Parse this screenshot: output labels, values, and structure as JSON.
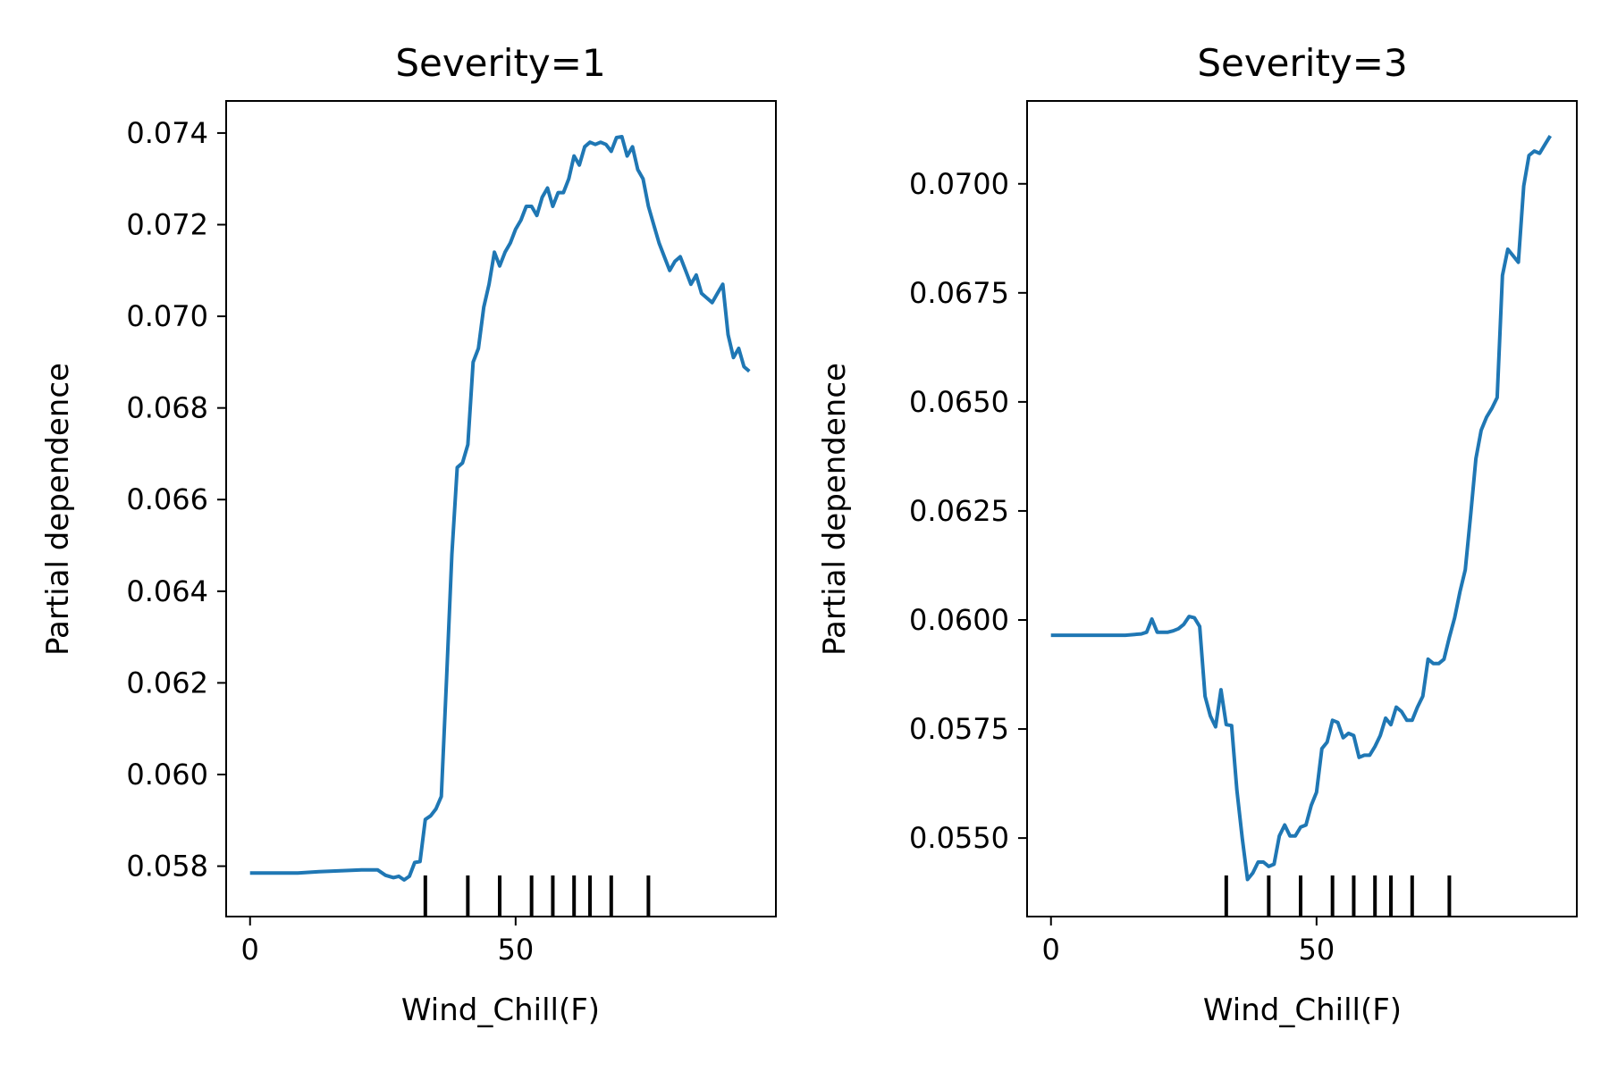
{
  "chart_data": [
    {
      "type": "line",
      "title": "Severity=1",
      "xlabel": "Wind_Chill(F)",
      "ylabel": "Partial dependence",
      "xlim": [
        -4.5,
        99
      ],
      "ylim": [
        0.0569,
        0.0747
      ],
      "xticks": [
        0,
        50
      ],
      "xtick_labels": [
        "0",
        "50"
      ],
      "yticks": [
        0.058,
        0.06,
        0.062,
        0.064,
        0.066,
        0.068,
        0.07,
        0.072,
        0.074
      ],
      "ytick_labels": [
        "0.058",
        "0.060",
        "0.062",
        "0.064",
        "0.066",
        "0.068",
        "0.070",
        "0.072",
        "0.074"
      ],
      "deciles": [
        33,
        41,
        47,
        53,
        57,
        61,
        64,
        68,
        75
      ],
      "series": [
        {
          "color": "#1f77b4",
          "x": [
            0,
            5,
            9,
            13,
            17,
            21,
            24,
            25.5,
            27,
            28,
            29,
            30,
            31,
            32,
            33,
            34,
            35,
            36,
            37,
            38,
            39,
            40,
            41,
            42,
            43,
            44,
            45,
            46,
            47,
            48,
            49,
            50,
            51,
            52,
            53,
            54,
            55,
            56,
            57,
            58,
            59,
            60,
            61,
            62,
            63,
            64,
            65,
            66,
            67,
            68,
            69,
            70,
            71,
            72,
            73,
            74,
            75,
            76,
            77,
            78,
            79,
            80,
            81,
            82,
            83,
            84,
            85,
            86,
            87,
            88,
            89,
            90,
            91,
            92,
            93,
            94
          ],
          "y": [
            0.05785,
            0.05785,
            0.05785,
            0.05788,
            0.0579,
            0.05792,
            0.05792,
            0.0578,
            0.05775,
            0.05778,
            0.0577,
            0.05778,
            0.05808,
            0.0581,
            0.05902,
            0.0591,
            0.05925,
            0.05952,
            0.0621,
            0.0648,
            0.0667,
            0.0668,
            0.0672,
            0.069,
            0.0693,
            0.0702,
            0.0707,
            0.0714,
            0.0711,
            0.0714,
            0.0716,
            0.0719,
            0.0721,
            0.0724,
            0.0724,
            0.0722,
            0.0726,
            0.0728,
            0.0724,
            0.0727,
            0.0727,
            0.073,
            0.0735,
            0.0733,
            0.0737,
            0.0738,
            0.07375,
            0.0738,
            0.07375,
            0.0736,
            0.0739,
            0.07392,
            0.0735,
            0.0737,
            0.0732,
            0.073,
            0.0724,
            0.072,
            0.0716,
            0.0713,
            0.071,
            0.0712,
            0.0713,
            0.071,
            0.0707,
            0.0709,
            0.0705,
            0.0704,
            0.0703,
            0.0705,
            0.0707,
            0.0696,
            0.0691,
            0.0693,
            0.0689,
            0.0688
          ]
        }
      ]
    },
    {
      "type": "line",
      "title": "Severity=3",
      "xlabel": "Wind_Chill(F)",
      "ylabel": "Partial dependence",
      "xlim": [
        -4.5,
        99
      ],
      "ylim": [
        0.0532,
        0.0719
      ],
      "xticks": [
        0,
        50
      ],
      "xtick_labels": [
        "0",
        "50"
      ],
      "yticks": [
        0.055,
        0.0575,
        0.06,
        0.0625,
        0.065,
        0.0675,
        0.07
      ],
      "ytick_labels": [
        "0.0550",
        "0.0575",
        "0.0600",
        "0.0625",
        "0.0650",
        "0.0675",
        "0.0700"
      ],
      "deciles": [
        33,
        41,
        47,
        53,
        57,
        61,
        64,
        68,
        75
      ],
      "series": [
        {
          "color": "#1f77b4",
          "x": [
            0,
            5,
            10,
            14,
            17,
            18,
            19,
            20,
            22,
            23,
            24,
            25,
            26,
            27,
            28,
            29,
            30,
            31,
            32,
            33,
            34,
            35,
            36,
            37,
            38,
            39,
            40,
            41,
            42,
            43,
            44,
            45,
            46,
            47,
            48,
            49,
            50,
            51,
            52,
            53,
            54,
            55,
            56,
            57,
            58,
            59,
            60,
            61,
            62,
            63,
            64,
            65,
            66,
            67,
            68,
            69,
            70,
            71,
            72,
            73,
            74,
            75,
            76,
            77,
            78,
            79,
            80,
            81,
            82,
            83,
            84,
            85,
            86,
            87,
            88,
            89,
            90,
            91,
            92,
            93,
            94
          ],
          "y": [
            0.05965,
            0.05965,
            0.05965,
            0.05965,
            0.05968,
            0.05972,
            0.06002,
            0.05972,
            0.05972,
            0.05975,
            0.0598,
            0.0599,
            0.06008,
            0.06005,
            0.05985,
            0.05825,
            0.0578,
            0.05755,
            0.0584,
            0.0576,
            0.05758,
            0.0561,
            0.055,
            0.05405,
            0.0542,
            0.05445,
            0.05445,
            0.05435,
            0.0544,
            0.05505,
            0.0553,
            0.05505,
            0.05505,
            0.05525,
            0.0553,
            0.05575,
            0.05605,
            0.05705,
            0.0572,
            0.0577,
            0.05765,
            0.0573,
            0.0574,
            0.05735,
            0.05685,
            0.0569,
            0.0569,
            0.0571,
            0.05735,
            0.05775,
            0.0576,
            0.058,
            0.0579,
            0.0577,
            0.0577,
            0.058,
            0.05825,
            0.0591,
            0.059,
            0.059,
            0.0591,
            0.0596,
            0.06005,
            0.06065,
            0.06115,
            0.0624,
            0.0637,
            0.06435,
            0.06465,
            0.06485,
            0.0651,
            0.0679,
            0.0685,
            0.06835,
            0.0682,
            0.06995,
            0.07065,
            0.07075,
            0.0707,
            0.0709,
            0.0711
          ]
        }
      ]
    }
  ]
}
